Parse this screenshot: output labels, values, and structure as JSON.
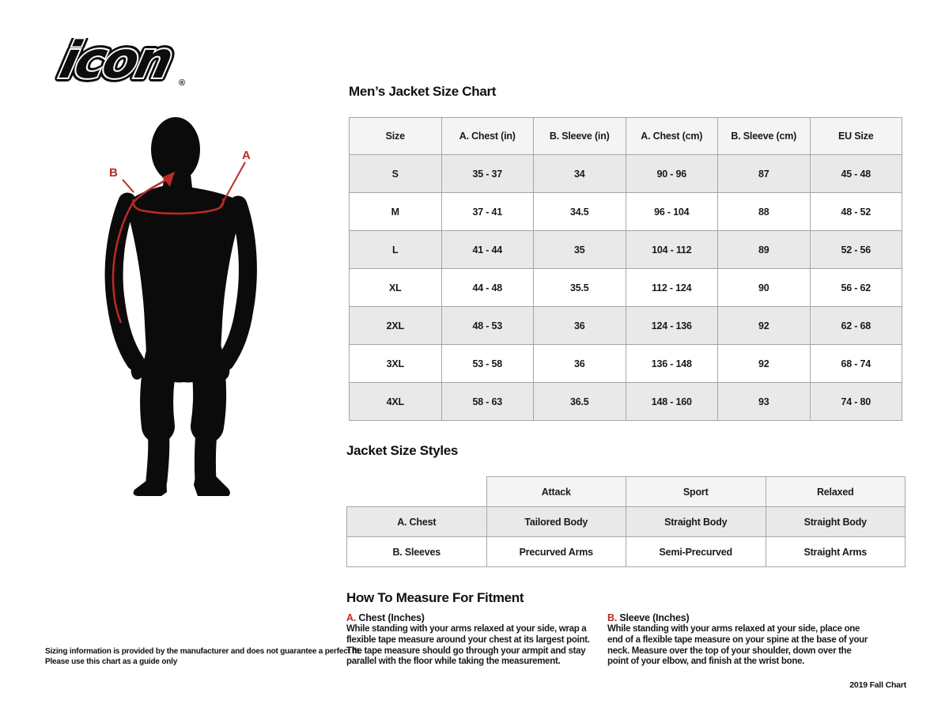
{
  "brand": {
    "logo_text": "icon",
    "registered": "®"
  },
  "figure": {
    "label_a": "A",
    "label_b": "B"
  },
  "size_chart": {
    "title": "Men’s Jacket Size Chart",
    "columns": [
      "Size",
      "A. Chest (in)",
      "B. Sleeve (in)",
      "A. Chest (cm)",
      "B. Sleeve (cm)",
      "EU Size"
    ],
    "rows": [
      [
        "S",
        "35 - 37",
        "34",
        "90 - 96",
        "87",
        "45 - 48"
      ],
      [
        "M",
        "37 - 41",
        "34.5",
        "96 - 104",
        "88",
        "48 - 52"
      ],
      [
        "L",
        "41 - 44",
        "35",
        "104 - 112",
        "89",
        "52 - 56"
      ],
      [
        "XL",
        "44 - 48",
        "35.5",
        "112 - 124",
        "90",
        "56 - 62"
      ],
      [
        "2XL",
        "48 - 53",
        "36",
        "124 - 136",
        "92",
        "62 - 68"
      ],
      [
        "3XL",
        "53 - 58",
        "36",
        "136 - 148",
        "92",
        "68 - 74"
      ],
      [
        "4XL",
        "58 - 63",
        "36.5",
        "148 - 160",
        "93",
        "74 - 80"
      ]
    ]
  },
  "styles_chart": {
    "title": "Jacket Size Styles",
    "columns": [
      "",
      "Attack",
      "Sport",
      "Relaxed"
    ],
    "rows": [
      [
        "A. Chest",
        "Tailored Body",
        "Straight Body",
        "Straight Body"
      ],
      [
        "B. Sleeves",
        "Precurved Arms",
        "Semi-Precurved",
        "Straight Arms"
      ]
    ]
  },
  "measure": {
    "title": "How To Measure For Fitment",
    "items": [
      {
        "prefix": "A.",
        "heading": "Chest (Inches)",
        "body": "While standing with your arms relaxed at your side, wrap a flexible tape measure around your chest at its largest point. The tape measure should go through your armpit and stay parallel with the floor while taking the measurement."
      },
      {
        "prefix": "B.",
        "heading": "Sleeve (Inches)",
        "body": "While standing with your arms relaxed at your side, place one end of a flexible tape measure on your spine at the base of your neck. Measure over the top of your shoulder, down over the point of your elbow, and finish at the wrist bone."
      }
    ]
  },
  "footer": {
    "disclaimer_line1": "Sizing information is provided by the manufacturer and does not guarantee a perfect fit.",
    "disclaimer_line2": "Please use this chart as a guide only",
    "version": "2019 Fall Chart"
  },
  "colors": {
    "accent_red": "#bb2b26",
    "table_border": "#a6a6a6",
    "table_header_bg": "#f4f4f4",
    "table_stripe_bg": "#e9e9e9",
    "silhouette": "#0b0b0b"
  }
}
